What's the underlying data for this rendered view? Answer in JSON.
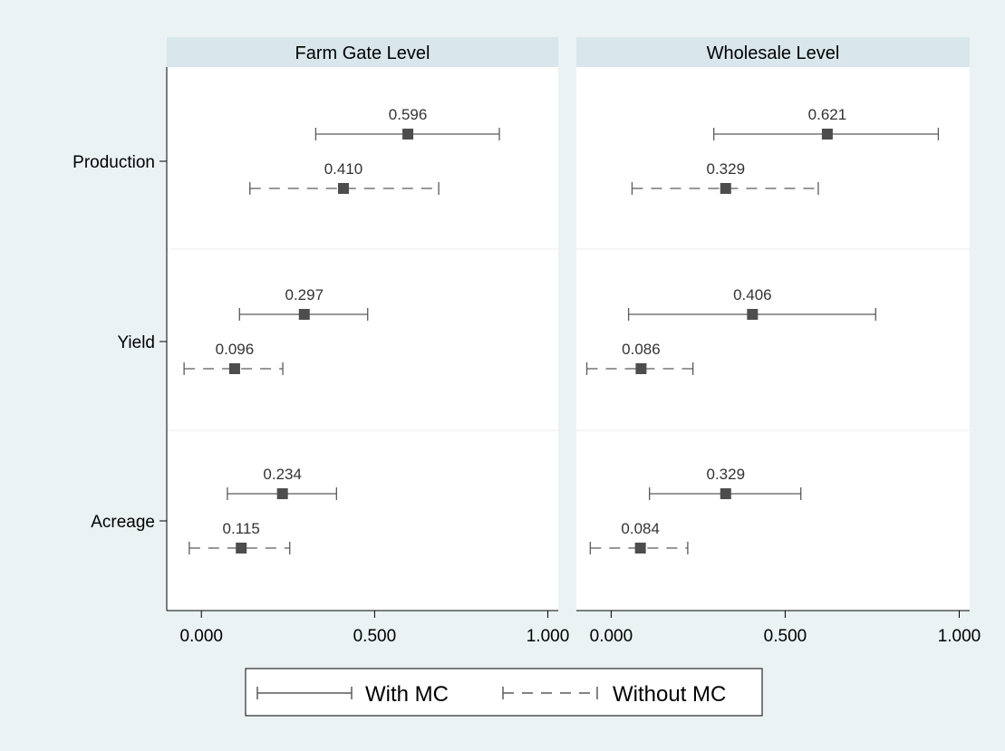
{
  "chart_data": {
    "type": "scatter",
    "title": "",
    "xlabel": "",
    "ylabel": "",
    "panels": [
      {
        "name": "Farm Gate Level"
      },
      {
        "name": "Wholesale Level"
      }
    ],
    "categories": [
      "Production",
      "Yield",
      "Acreage"
    ],
    "xlim": [
      -0.1,
      1.03
    ],
    "xticks": [
      0.0,
      0.5,
      1.0
    ],
    "xtick_labels": [
      "0.000",
      "0.500",
      "1.000"
    ],
    "grid": true,
    "legend_position": "bottom",
    "series": [
      {
        "name": "With MC",
        "line_style": "solid",
        "points": [
          {
            "panel": "Farm Gate Level",
            "category": "Production",
            "value": 0.596,
            "label": "0.596",
            "ci": [
              0.33,
              0.86
            ]
          },
          {
            "panel": "Farm Gate Level",
            "category": "Yield",
            "value": 0.297,
            "label": "0.297",
            "ci": [
              0.11,
              0.48
            ]
          },
          {
            "panel": "Farm Gate Level",
            "category": "Acreage",
            "value": 0.234,
            "label": "0.234",
            "ci": [
              0.075,
              0.39
            ]
          },
          {
            "panel": "Wholesale Level",
            "category": "Production",
            "value": 0.621,
            "label": "0.621",
            "ci": [
              0.295,
              0.94
            ]
          },
          {
            "panel": "Wholesale Level",
            "category": "Yield",
            "value": 0.406,
            "label": "0.406",
            "ci": [
              0.05,
              0.76
            ]
          },
          {
            "panel": "Wholesale Level",
            "category": "Acreage",
            "value": 0.329,
            "label": "0.329",
            "ci": [
              0.11,
              0.545
            ]
          }
        ]
      },
      {
        "name": "Without MC",
        "line_style": "dashed",
        "points": [
          {
            "panel": "Farm Gate Level",
            "category": "Production",
            "value": 0.41,
            "label": "0.410",
            "ci": [
              0.14,
              0.685
            ]
          },
          {
            "panel": "Farm Gate Level",
            "category": "Yield",
            "value": 0.096,
            "label": "0.096",
            "ci": [
              -0.05,
              0.235
            ]
          },
          {
            "panel": "Farm Gate Level",
            "category": "Acreage",
            "value": 0.115,
            "label": "0.115",
            "ci": [
              -0.035,
              0.255
            ]
          },
          {
            "panel": "Wholesale Level",
            "category": "Production",
            "value": 0.329,
            "label": "0.329",
            "ci": [
              0.06,
              0.595
            ]
          },
          {
            "panel": "Wholesale Level",
            "category": "Yield",
            "value": 0.086,
            "label": "0.086",
            "ci": [
              -0.07,
              0.235
            ]
          },
          {
            "panel": "Wholesale Level",
            "category": "Acreage",
            "value": 0.084,
            "label": "0.084",
            "ci": [
              -0.06,
              0.22
            ]
          }
        ]
      }
    ],
    "colors": {
      "marker": "#4d4d4d",
      "line": "#5a5a5a",
      "strip_background": "#d9e6eb",
      "outer_background": "#eaf2f3",
      "plot_background": "#ffffff",
      "grid": "#eeeeee"
    }
  }
}
